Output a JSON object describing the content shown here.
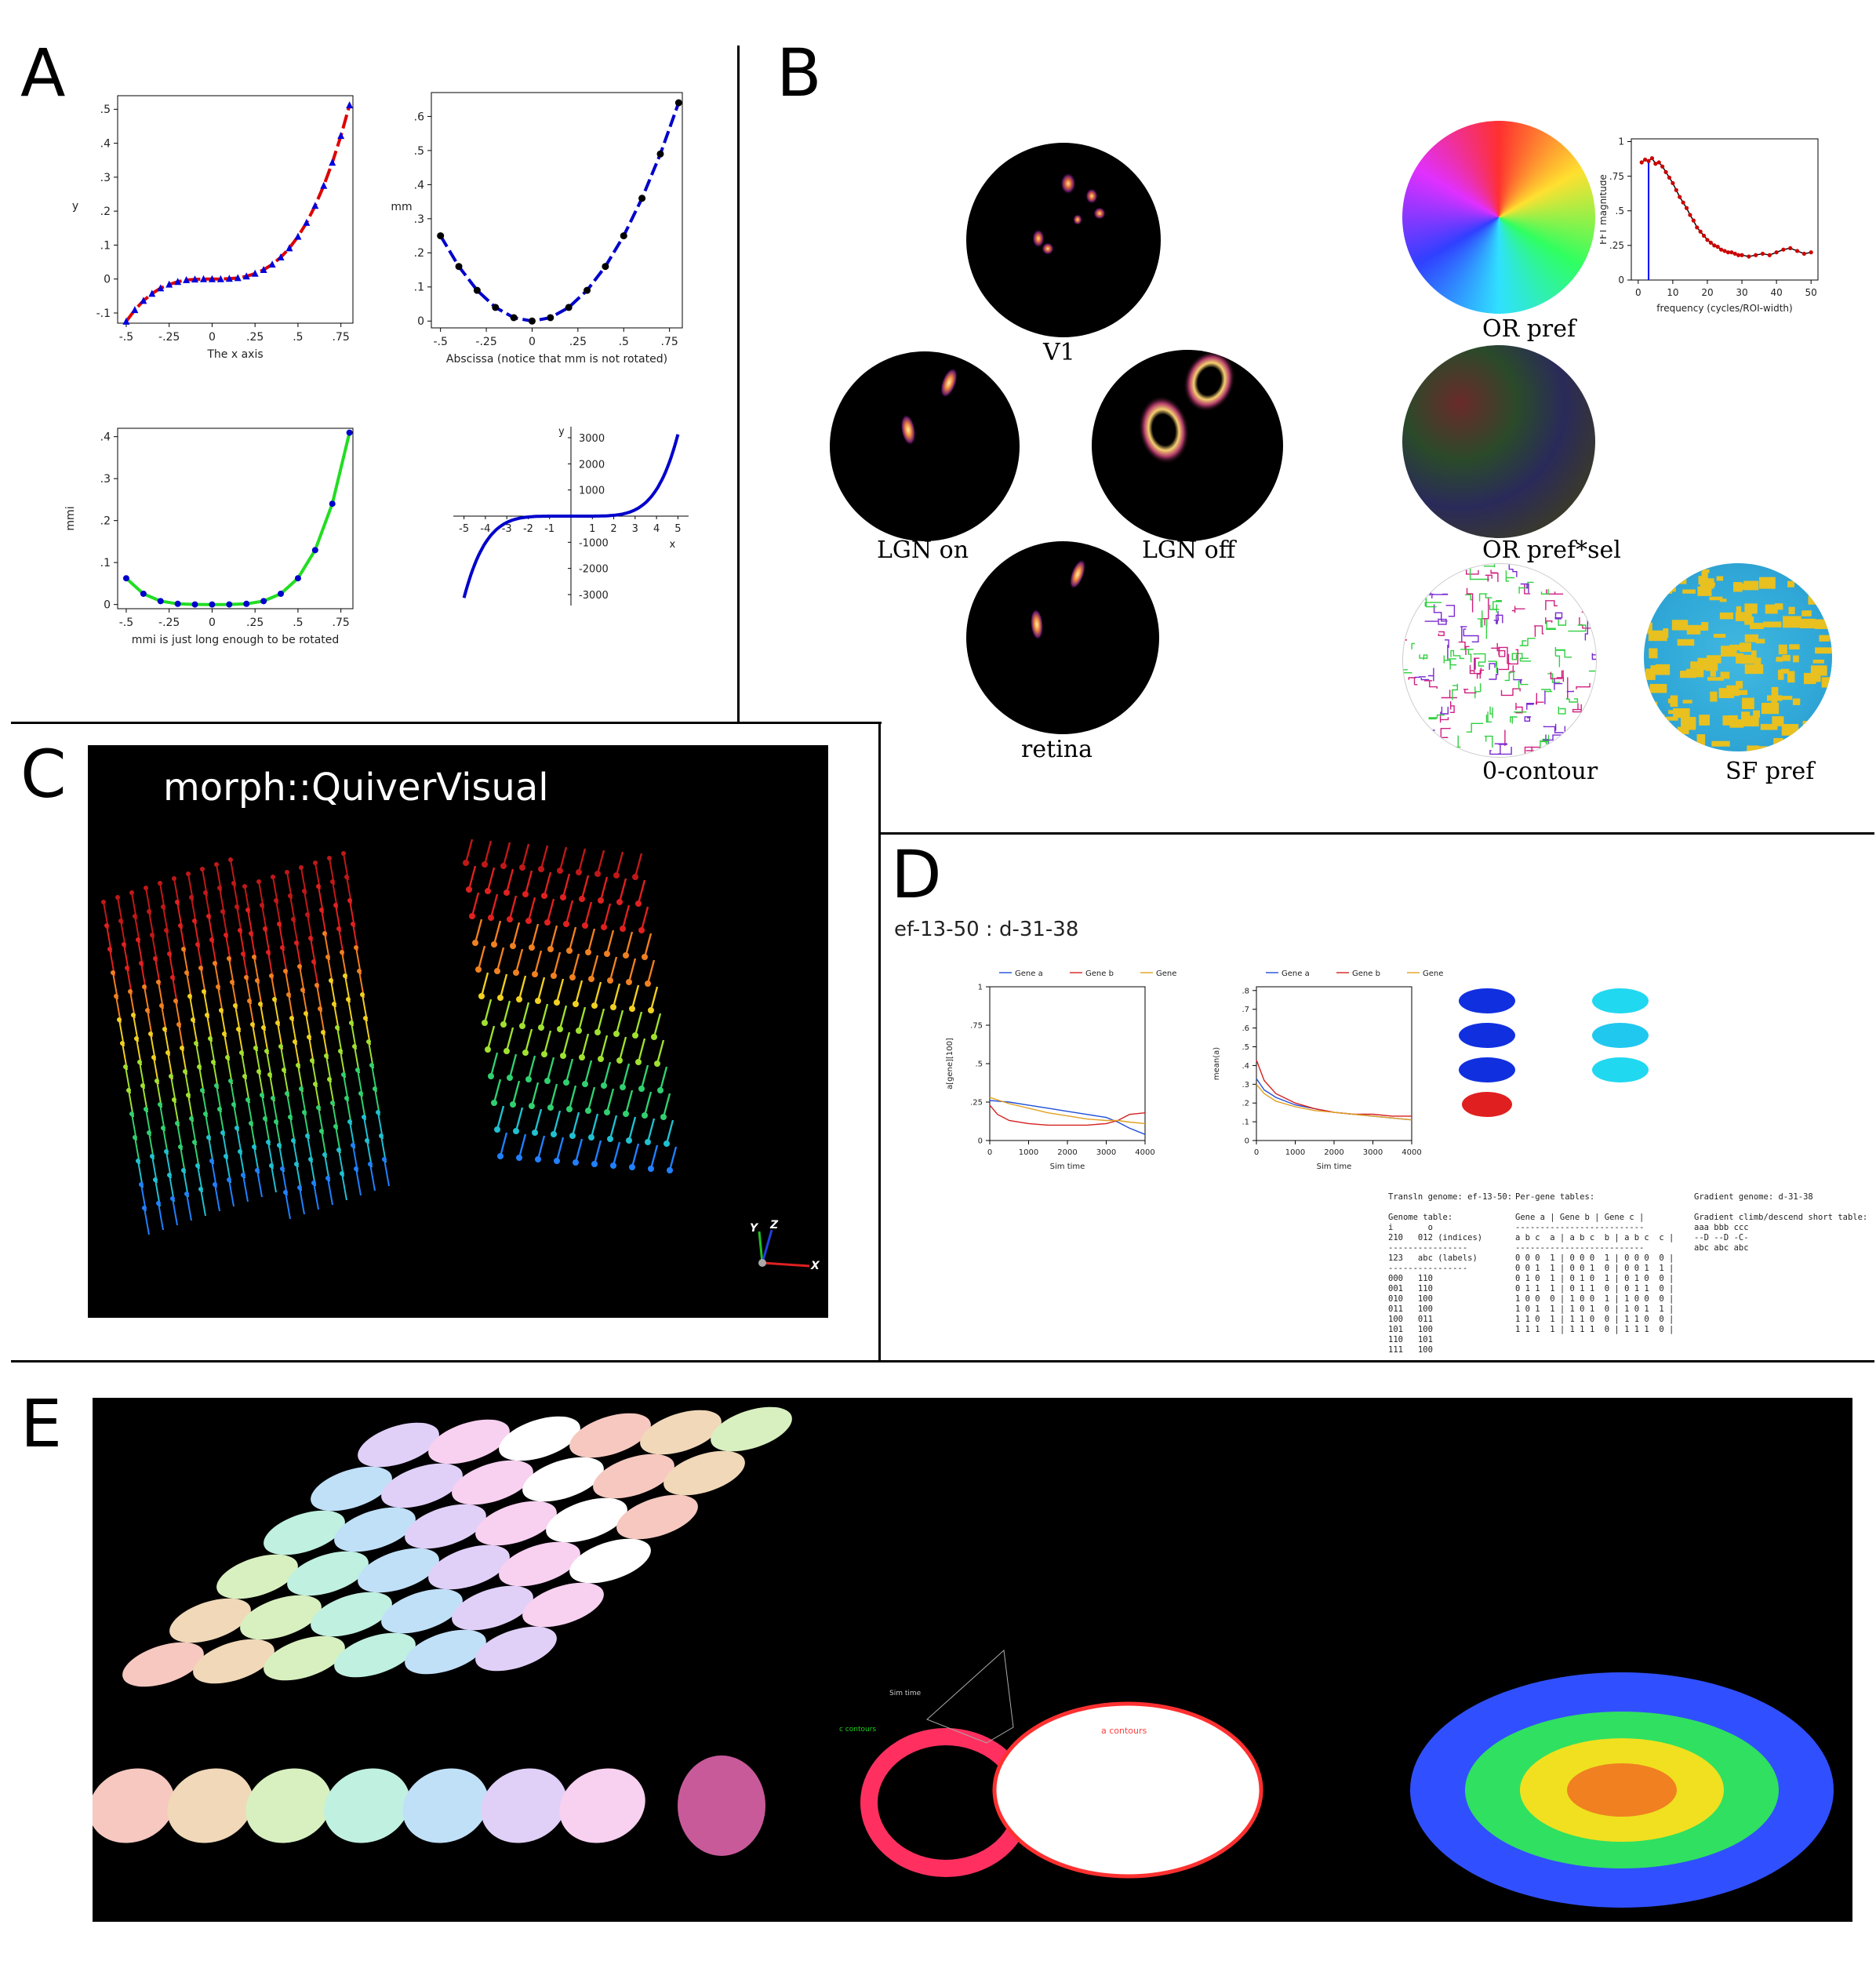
{
  "panels": {
    "a": "A",
    "b": "B",
    "c": "C",
    "d": "D",
    "e": "E"
  },
  "chart_data": [
    {
      "type": "scatter",
      "xlabel": "The x axis",
      "ylabel": "y",
      "xticks": [
        "-.5",
        "-.25",
        "0",
        ".25",
        ".5",
        ".75"
      ],
      "yticks": [
        "-.1",
        "0",
        ".1",
        ".2",
        ".3",
        ".4",
        ".5"
      ],
      "xlim": [
        -0.55,
        0.82
      ],
      "ylim": [
        -0.13,
        0.54
      ],
      "x": [
        -0.5,
        -0.45,
        -0.4,
        -0.35,
        -0.3,
        -0.25,
        -0.2,
        -0.15,
        -0.1,
        -0.05,
        0,
        0.05,
        0.1,
        0.15,
        0.2,
        0.25,
        0.3,
        0.35,
        0.4,
        0.45,
        0.5,
        0.55,
        0.6,
        0.65,
        0.7,
        0.75,
        0.8
      ],
      "y": [
        -0.125,
        -0.091,
        -0.064,
        -0.043,
        -0.027,
        -0.016,
        -0.008,
        -0.003,
        -0.001,
        0,
        0,
        0,
        0.001,
        0.003,
        0.008,
        0.016,
        0.027,
        0.043,
        0.064,
        0.091,
        0.125,
        0.166,
        0.216,
        0.275,
        0.343,
        0.422,
        0.512
      ],
      "line_color": "#dd0000",
      "marker_color": "#0000dd",
      "marker": "triangle"
    },
    {
      "type": "scatter",
      "xlabel": "Abscissa (notice that mm is not rotated)",
      "ylabel": "mm",
      "xticks": [
        "-.5",
        "-.25",
        "0",
        ".25",
        ".5",
        ".75"
      ],
      "yticks": [
        "0",
        ".1",
        ".2",
        ".3",
        ".4",
        ".5",
        ".6"
      ],
      "xlim": [
        -0.55,
        0.82
      ],
      "ylim": [
        -0.02,
        0.67
      ],
      "x": [
        -0.5,
        -0.4,
        -0.3,
        -0.2,
        -0.1,
        0,
        0.1,
        0.2,
        0.3,
        0.4,
        0.5,
        0.6,
        0.7,
        0.8
      ],
      "y": [
        0.25,
        0.16,
        0.09,
        0.04,
        0.01,
        0,
        0.01,
        0.04,
        0.09,
        0.16,
        0.25,
        0.36,
        0.49,
        0.64
      ],
      "line_color": "#0000cc",
      "marker_color": "#000000",
      "marker": "circle"
    },
    {
      "type": "scatter",
      "xlabel": "mmi is just long enough to be rotated",
      "ylabel": "mmi",
      "xticks": [
        "-.5",
        "-.25",
        "0",
        ".25",
        ".5",
        ".75"
      ],
      "yticks": [
        "0",
        ".1",
        ".2",
        ".3",
        ".4"
      ],
      "xlim": [
        -0.55,
        0.82
      ],
      "ylim": [
        -0.01,
        0.42
      ],
      "x": [
        -0.5,
        -0.4,
        -0.3,
        -0.2,
        -0.1,
        0,
        0.1,
        0.2,
        0.3,
        0.4,
        0.5,
        0.6,
        0.7,
        0.8
      ],
      "y": [
        0.0625,
        0.0256,
        0.0081,
        0.0016,
        0.0001,
        0,
        0.0001,
        0.0016,
        0.0081,
        0.0256,
        0.0625,
        0.1296,
        0.2401,
        0.4096
      ],
      "line_color": "#22dd22",
      "marker_color": "#0000cc",
      "marker": "circle"
    },
    {
      "type": "line",
      "xlabel": "x",
      "ylabel": "y",
      "xticks": [
        "-5",
        "-4",
        "-3",
        "-2",
        "-1",
        "1",
        "2",
        "3",
        "4",
        "5"
      ],
      "yticks": [
        "-3000",
        "-2000",
        "-1000",
        "1000",
        "2000",
        "3000"
      ],
      "xlim": [
        -5.5,
        5.5
      ],
      "ylim": [
        -3300,
        3300
      ],
      "function": "y = x^5",
      "line_color": "#0000cc"
    },
    {
      "type": "line",
      "xlabel": "frequency (cycles/ROI-width)",
      "ylabel": "FFT magnitude",
      "xticks": [
        "0",
        "10",
        "20",
        "30",
        "40",
        "50"
      ],
      "yticks": [
        "0",
        ".25",
        ".5",
        ".75",
        "1"
      ],
      "xlim": [
        -2,
        52
      ],
      "ylim": [
        0,
        1.02
      ],
      "x": [
        1,
        2,
        3,
        4,
        5,
        6,
        7,
        8,
        9,
        10,
        11,
        12,
        13,
        14,
        15,
        16,
        17,
        18,
        19,
        20,
        21,
        22,
        23,
        24,
        25,
        26,
        27,
        28,
        29,
        30,
        32,
        34,
        36,
        38,
        40,
        42,
        44,
        46,
        48,
        50
      ],
      "y": [
        0.85,
        0.87,
        0.86,
        0.88,
        0.84,
        0.85,
        0.82,
        0.78,
        0.74,
        0.7,
        0.65,
        0.6,
        0.56,
        0.52,
        0.47,
        0.43,
        0.38,
        0.35,
        0.32,
        0.29,
        0.27,
        0.25,
        0.24,
        0.22,
        0.21,
        0.2,
        0.2,
        0.19,
        0.18,
        0.18,
        0.17,
        0.18,
        0.19,
        0.18,
        0.2,
        0.22,
        0.23,
        0.21,
        0.19,
        0.2
      ],
      "line_color": "#000000",
      "marker_color": "#cc0000",
      "marker_line_x": 3,
      "marker_line_color": "#0000ff"
    },
    {
      "type": "line",
      "xlabel": "Sim time",
      "ylabel": "a[gene][100]",
      "xticks": [
        "0",
        "1000",
        "2000",
        "3000",
        "4000"
      ],
      "yticks": [
        "0",
        ".25",
        ".5",
        ".75",
        "1"
      ],
      "xlim": [
        0,
        4000
      ],
      "ylim": [
        0,
        1
      ],
      "legend_position": "top",
      "series": [
        {
          "name": "Gene a",
          "color": "#1f4fd8",
          "x": [
            0,
            500,
            1000,
            1500,
            2000,
            2500,
            3000,
            3300,
            3600,
            4000
          ],
          "y": [
            0.26,
            0.25,
            0.23,
            0.21,
            0.19,
            0.17,
            0.15,
            0.12,
            0.08,
            0.04
          ]
        },
        {
          "name": "Gene b",
          "color": "#d62020",
          "x": [
            0,
            200,
            500,
            1000,
            1500,
            2000,
            2500,
            3000,
            3300,
            3600,
            4000
          ],
          "y": [
            0.23,
            0.17,
            0.13,
            0.11,
            0.1,
            0.1,
            0.1,
            0.11,
            0.13,
            0.17,
            0.18
          ]
        },
        {
          "name": "Gene c",
          "color": "#e0a020",
          "x": [
            0,
            500,
            1000,
            1500,
            2000,
            2500,
            3000,
            3300,
            3600,
            4000
          ],
          "y": [
            0.28,
            0.24,
            0.21,
            0.18,
            0.16,
            0.14,
            0.13,
            0.13,
            0.12,
            0.11
          ]
        }
      ]
    },
    {
      "type": "line",
      "xlabel": "Sim time",
      "ylabel": "mean(a)",
      "xticks": [
        "0",
        "1000",
        "2000",
        "3000",
        "4000"
      ],
      "yticks": [
        "0",
        ".1",
        ".2",
        ".3",
        ".4",
        ".5",
        ".6",
        ".7",
        ".8"
      ],
      "xlim": [
        0,
        4000
      ],
      "ylim": [
        0,
        0.82
      ],
      "legend_position": "top",
      "series": [
        {
          "name": "Gene a",
          "color": "#1f4fd8",
          "x": [
            0,
            200,
            500,
            1000,
            1500,
            2000,
            2500,
            3000,
            3500,
            4000
          ],
          "y": [
            0.33,
            0.27,
            0.23,
            0.19,
            0.17,
            0.15,
            0.14,
            0.13,
            0.12,
            0.11
          ]
        },
        {
          "name": "Gene b",
          "color": "#d62020",
          "x": [
            0,
            200,
            500,
            1000,
            1500,
            2000,
            2500,
            3000,
            3500,
            4000
          ],
          "y": [
            0.43,
            0.32,
            0.25,
            0.2,
            0.17,
            0.15,
            0.14,
            0.14,
            0.13,
            0.13
          ]
        },
        {
          "name": "Gene c",
          "color": "#e0a020",
          "x": [
            0,
            200,
            500,
            1000,
            1500,
            2000,
            2500,
            3000,
            3500,
            4000
          ],
          "y": [
            0.3,
            0.25,
            0.21,
            0.18,
            0.16,
            0.15,
            0.14,
            0.13,
            0.12,
            0.11
          ]
        }
      ]
    }
  ],
  "panel_b": {
    "labels": {
      "v1": "V1",
      "lgn_on": "LGN on",
      "lgn_off": "LGN off",
      "retina": "retina",
      "or_pref": "OR pref",
      "or_pref_sel": "OR pref*sel",
      "contour": "0-contour",
      "sf_pref": "SF pref"
    }
  },
  "panel_c": {
    "title": "morph::QuiverVisual",
    "axes": {
      "x": "X",
      "y": "Y",
      "z": "Z"
    }
  },
  "panel_d": {
    "title": "ef-13-50 : d-31-38",
    "transln_text": "Transln genome: ef-13-50:\n\nGenome table:\ni       o\n210   012 (indices)\n----------------\n123   abc (labels)\n----------------\n000   110\n001   110\n010   100\n011   100\n100   011\n101   100\n110   101\n111   100",
    "pergene_text": "Per-gene tables:\n\nGene a | Gene b | Gene c |\n--------------------------\na b c  a | a b c  b | a b c  c |\n--------------------------\n0 0 0  1 | 0 0 0  1 | 0 0 0  0 |\n0 0 1  1 | 0 0 1  0 | 0 0 1  1 |\n0 1 0  1 | 0 1 0  1 | 0 1 0  0 |\n0 1 1  1 | 0 1 1  0 | 0 1 1  0 |\n1 0 0  0 | 1 0 0  1 | 1 0 0  0 |\n1 0 1  1 | 1 0 1  0 | 1 0 1  1 |\n1 1 0  1 | 1 1 0  0 | 1 1 0  0 |\n1 1 1  1 | 1 1 1  0 | 1 1 1  0 |",
    "gradient_text": "Gradient genome: d-31-38\n\nGradient climb/descend short table:\naaa bbb ccc\n--D --D -C-\nabc abc abc"
  },
  "panel_e": {
    "axis_label": "Sim time",
    "contour_label_1": "c contours",
    "contour_label_2": "a contours"
  }
}
